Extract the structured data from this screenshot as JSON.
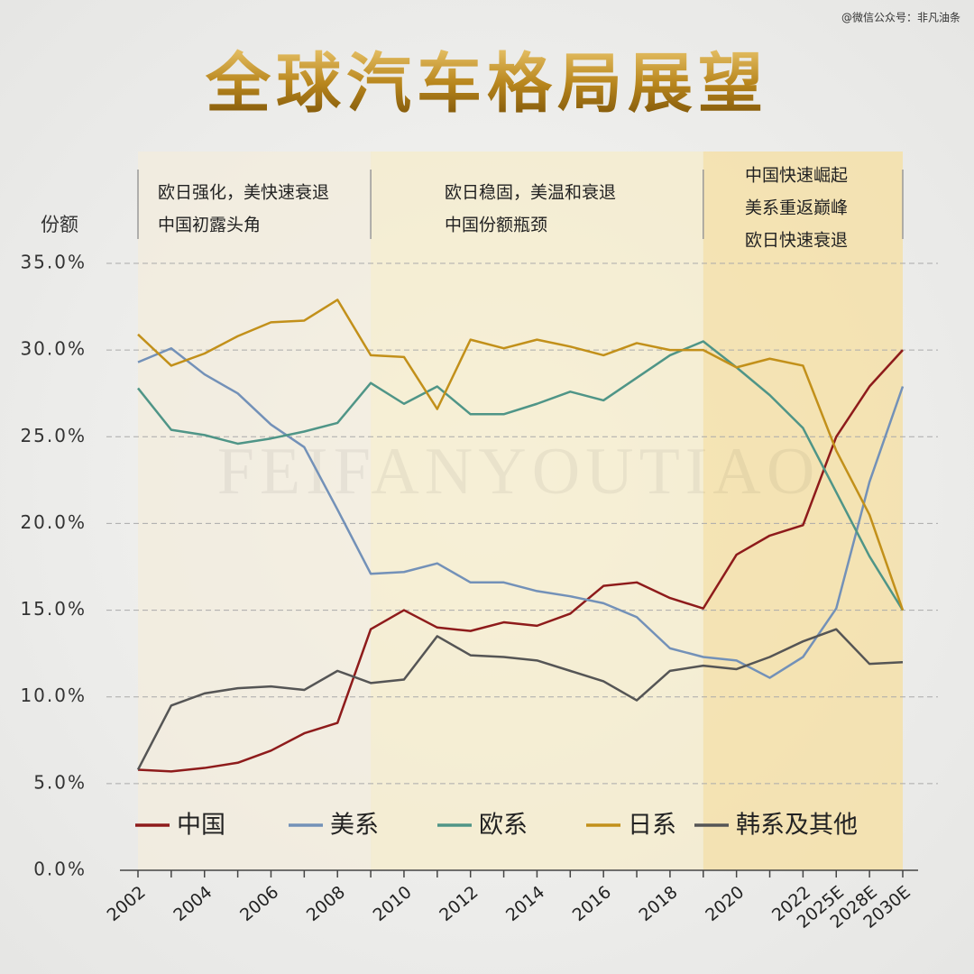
{
  "chart_data": {
    "type": "line",
    "title": "全球汽车格局展望",
    "source": "@微信公众号：非凡油条",
    "watermark": "FEIFANYOUTIAO",
    "ylabel": "份额",
    "categories": [
      "2002",
      null,
      "2004",
      null,
      "2006",
      null,
      "2008",
      null,
      "2010",
      null,
      "2012",
      null,
      "2014",
      null,
      "2016",
      null,
      "2018",
      null,
      "2020",
      null,
      "2022",
      "2025E",
      "2028E",
      "2030E"
    ],
    "ylim": [
      0,
      35
    ],
    "yticks": [
      {
        "value": 0,
        "label": "0.0%"
      },
      {
        "value": 5,
        "label": "5.0%"
      },
      {
        "value": 10,
        "label": "10.0%"
      },
      {
        "value": 15,
        "label": "15.0%"
      },
      {
        "value": 20,
        "label": "20.0%"
      },
      {
        "value": 25,
        "label": "25.0%"
      },
      {
        "value": 30,
        "label": "30.0%"
      },
      {
        "value": 35,
        "label": "35.0%"
      }
    ],
    "grid": true,
    "legend": "bottom",
    "annotations": [
      [
        "欧日强化，美快速衰退",
        "中国初露头角"
      ],
      [
        "欧日稳固，美温和衰退",
        "中国份额瓶颈"
      ],
      [
        "中国快速崛起",
        "美系重返巅峰",
        "欧日快速衰退"
      ]
    ],
    "series": [
      {
        "name": "中国",
        "color": "#8e1b1b",
        "values": [
          5.8,
          5.7,
          5.9,
          6.2,
          6.9,
          7.9,
          8.5,
          13.9,
          15.0,
          14.0,
          13.8,
          14.3,
          14.1,
          14.8,
          16.4,
          16.6,
          15.7,
          15.1,
          18.2,
          19.3,
          19.9,
          25.0,
          27.9,
          30.0
        ]
      },
      {
        "name": "美系",
        "color": "#7391b8",
        "values": [
          29.3,
          30.1,
          28.6,
          27.5,
          25.7,
          24.4,
          20.8,
          17.1,
          17.2,
          17.7,
          16.6,
          16.6,
          16.1,
          15.8,
          15.4,
          14.6,
          12.8,
          12.3,
          12.1,
          11.1,
          12.3,
          15.1,
          22.4,
          27.9
        ]
      },
      {
        "name": "欧系",
        "color": "#4f9587",
        "values": [
          27.8,
          25.4,
          25.1,
          24.6,
          24.9,
          25.3,
          25.8,
          28.1,
          26.9,
          27.9,
          26.3,
          26.3,
          26.9,
          27.6,
          27.1,
          28.4,
          29.7,
          30.5,
          29.0,
          27.4,
          25.5,
          21.8,
          18.1,
          15.0
        ]
      },
      {
        "name": "日系",
        "color": "#c2901a",
        "values": [
          30.9,
          29.1,
          29.8,
          30.8,
          31.6,
          31.7,
          32.9,
          29.7,
          29.6,
          26.6,
          30.6,
          30.1,
          30.6,
          30.2,
          29.7,
          30.4,
          30.0,
          30.0,
          29.0,
          29.5,
          29.1,
          24.2,
          20.5,
          15.0
        ]
      },
      {
        "name": "韩系及其他",
        "color": "#555555",
        "values": [
          5.8,
          9.5,
          10.2,
          10.5,
          10.6,
          10.4,
          11.5,
          10.8,
          11.0,
          13.5,
          12.4,
          12.3,
          12.1,
          11.5,
          10.9,
          9.8,
          11.5,
          11.8,
          11.6,
          12.3,
          13.2,
          13.9,
          11.9,
          12.0
        ]
      }
    ]
  }
}
